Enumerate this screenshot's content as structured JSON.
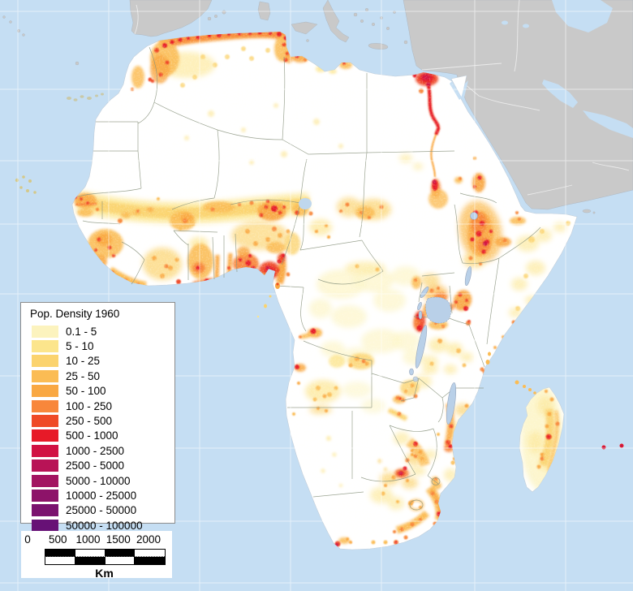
{
  "map": {
    "type": "raster-choropleth-map",
    "region": "Africa",
    "legend": {
      "title": "Pop. Density 1960",
      "classes": [
        {
          "label": "0.1 - 5",
          "color": "#FCF3BE"
        },
        {
          "label": "5 - 10",
          "color": "#FCE58C"
        },
        {
          "label": "10 - 25",
          "color": "#FBD36E"
        },
        {
          "label": "25 - 50",
          "color": "#FBBC54"
        },
        {
          "label": "50 - 100",
          "color": "#F9A843"
        },
        {
          "label": "100 - 250",
          "color": "#F8873B"
        },
        {
          "label": "250 - 500",
          "color": "#EF4A26"
        },
        {
          "label": "500 - 1000",
          "color": "#E71A28"
        },
        {
          "label": "1000 - 2500",
          "color": "#D11243"
        },
        {
          "label": "2500 - 5000",
          "color": "#B81356"
        },
        {
          "label": "5000 - 10000",
          "color": "#A31461"
        },
        {
          "label": "10000 - 25000",
          "color": "#8D1369"
        },
        {
          "label": "25000 - 50000",
          "color": "#7B126F"
        },
        {
          "label": "50000 - 100000",
          "color": "#671176"
        }
      ]
    },
    "scalebar": {
      "ticks": [
        "0",
        "500",
        "1000",
        "1500",
        "2000"
      ],
      "unit": "Km"
    },
    "colors": {
      "ocean": "#C5DEF3",
      "other_land": "#C9C9C9",
      "africa_land": "#FFFFFF",
      "grid": "#FFFFFF",
      "country_border": "#8A947F",
      "lake": "#B9D0E8"
    }
  }
}
